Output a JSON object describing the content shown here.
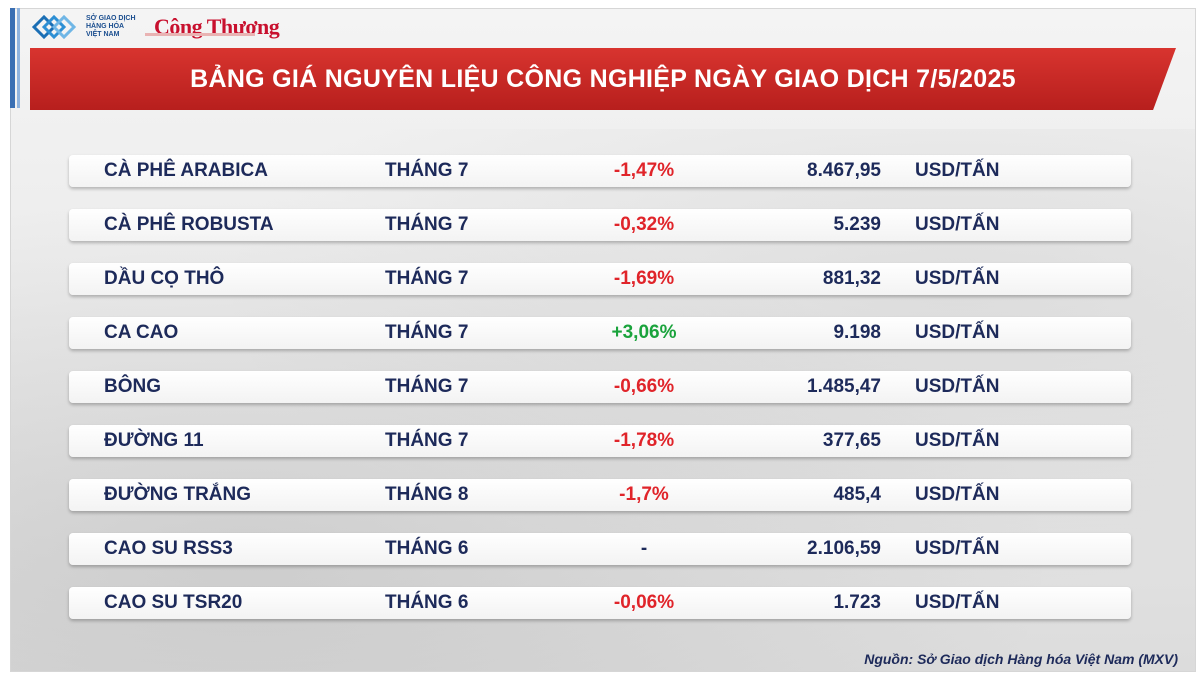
{
  "header": {
    "mxv_logo_text": [
      "SỞ GIAO DỊCH",
      "HÀNG HÓA",
      "VIỆT NAM"
    ],
    "brand_logo": "Công Thương",
    "title": "BẢNG GIÁ NGUYÊN LIỆU CÔNG NGHIỆP NGÀY GIAO DỊCH 7/5/2025"
  },
  "colors": {
    "banner": "#c62828",
    "negative": "#e0242a",
    "positive": "#1aa33c",
    "text": "#1d2a5a"
  },
  "rows": [
    {
      "name": "CÀ PHÊ ARABICA",
      "month": "THÁNG 7",
      "change": "-1,47%",
      "direction": "neg",
      "price": "8.467,95",
      "unit": "USD/TẤN"
    },
    {
      "name": "CÀ PHÊ ROBUSTA",
      "month": "THÁNG 7",
      "change": "-0,32%",
      "direction": "neg",
      "price": "5.239",
      "unit": "USD/TẤN"
    },
    {
      "name": "DẦU CỌ THÔ",
      "month": "THÁNG 7",
      "change": "-1,69%",
      "direction": "neg",
      "price": "881,32",
      "unit": "USD/TẤN"
    },
    {
      "name": "CA CAO",
      "month": "THÁNG 7",
      "change": "+3,06%",
      "direction": "pos",
      "price": "9.198",
      "unit": "USD/TẤN"
    },
    {
      "name": "BÔNG",
      "month": "THÁNG 7",
      "change": "-0,66%",
      "direction": "neg",
      "price": "1.485,47",
      "unit": "USD/TẤN"
    },
    {
      "name": "ĐƯỜNG 11",
      "month": "THÁNG 7",
      "change": "-1,78%",
      "direction": "neg",
      "price": "377,65",
      "unit": "USD/TẤN"
    },
    {
      "name": "ĐƯỜNG TRẮNG",
      "month": "THÁNG 8",
      "change": "-1,7%",
      "direction": "neg",
      "price": "485,4",
      "unit": "USD/TẤN"
    },
    {
      "name": "CAO SU RSS3",
      "month": "THÁNG 6",
      "change": "-",
      "direction": "flat",
      "price": "2.106,59",
      "unit": "USD/TẤN"
    },
    {
      "name": "CAO SU TSR20",
      "month": "THÁNG 6",
      "change": "-0,06%",
      "direction": "neg",
      "price": "1.723",
      "unit": "USD/TẤN"
    }
  ],
  "footer": {
    "source": "Nguồn: Sở Giao dịch Hàng hóa Việt Nam (MXV)"
  }
}
